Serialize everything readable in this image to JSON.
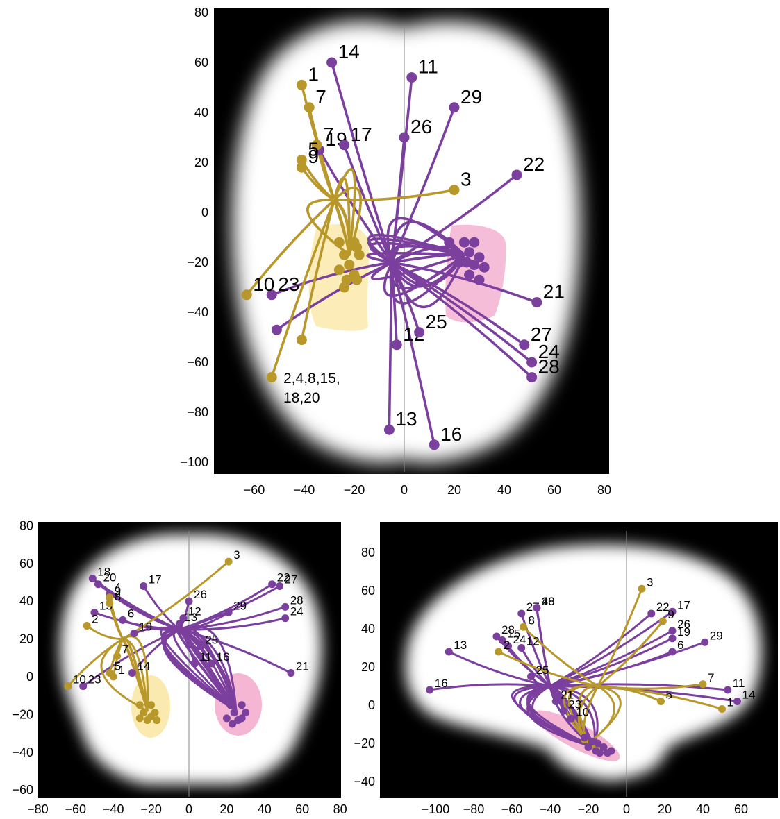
{
  "colors": {
    "olive": "#b8982a",
    "purple": "#7b3f9d",
    "pink": "#f4b6d3",
    "yellow": "#fbeab0"
  },
  "panels": {
    "axial": {
      "x_ticks": [
        "−60",
        "−40",
        "−20",
        "0",
        "20",
        "40",
        "60",
        "80"
      ],
      "y_ticks": [
        "80",
        "60",
        "40",
        "20",
        "0",
        "−20",
        "−40",
        "−60",
        "−80",
        "−100"
      ],
      "group_label_line1": "2,4,8,15,",
      "group_label_line2": "18,20",
      "olive": [
        {
          "label": "1",
          "x": -41,
          "y": 51
        },
        {
          "label": "7",
          "x": -38,
          "y": 42
        },
        {
          "label": "7",
          "x": -35,
          "y": 27
        },
        {
          "label": "5",
          "x": -41,
          "y": 21
        },
        {
          "label": "9",
          "x": -41,
          "y": 18
        },
        {
          "label": "3",
          "x": 20,
          "y": 9
        },
        {
          "label": "10",
          "x": -63,
          "y": -33
        },
        {
          "label": "",
          "x": -41,
          "y": -51
        },
        {
          "label": "",
          "x": -53,
          "y": -66
        }
      ],
      "purple": [
        {
          "label": "14",
          "x": -29,
          "y": 60
        },
        {
          "label": "19",
          "x": -34,
          "y": 25
        },
        {
          "label": "17",
          "x": -24,
          "y": 27
        },
        {
          "label": "11",
          "x": 3,
          "y": 54
        },
        {
          "label": "29",
          "x": 20,
          "y": 42
        },
        {
          "label": "26",
          "x": 0,
          "y": 30
        },
        {
          "label": "22",
          "x": 45,
          "y": 15
        },
        {
          "label": "23",
          "x": -53,
          "y": -33
        },
        {
          "label": "",
          "x": -51,
          "y": -47
        },
        {
          "label": "21",
          "x": 53,
          "y": -36
        },
        {
          "label": "27",
          "x": 48,
          "y": -53
        },
        {
          "label": "24",
          "x": 51,
          "y": -60
        },
        {
          "label": "28",
          "x": 51,
          "y": -66
        },
        {
          "label": "12",
          "x": -3,
          "y": -53
        },
        {
          "label": "25",
          "x": 6,
          "y": -48
        },
        {
          "label": "13",
          "x": -6,
          "y": -87
        },
        {
          "label": "16",
          "x": 12,
          "y": -93
        }
      ]
    },
    "coronal": {
      "x_ticks": [
        "−80",
        "−60",
        "−40",
        "−20",
        "0",
        "20",
        "40",
        "60",
        "80"
      ],
      "y_ticks": [
        "80",
        "60",
        "40",
        "20",
        "0",
        "−20",
        "−40",
        "−60"
      ],
      "olive": [
        {
          "label": "3",
          "x": 21,
          "y": 61
        },
        {
          "label": "9",
          "x": -42,
          "y": 42
        },
        {
          "label": "8",
          "x": -42,
          "y": 39
        },
        {
          "label": "2",
          "x": -54,
          "y": 27
        },
        {
          "label": "7",
          "x": -38,
          "y": 11
        },
        {
          "label": "5",
          "x": -42,
          "y": 2
        },
        {
          "label": "1",
          "x": -40,
          "y": 0
        },
        {
          "label": "10",
          "x": -64,
          "y": -5
        }
      ],
      "purple": [
        {
          "label": "18",
          "x": -51,
          "y": 52
        },
        {
          "label": "20",
          "x": -48,
          "y": 49
        },
        {
          "label": "4",
          "x": -42,
          "y": 44
        },
        {
          "label": "17",
          "x": -24,
          "y": 48
        },
        {
          "label": "15",
          "x": -50,
          "y": 34
        },
        {
          "label": "6",
          "x": -35,
          "y": 30
        },
        {
          "label": "19",
          "x": -29,
          "y": 23
        },
        {
          "label": "14",
          "x": -30,
          "y": 2
        },
        {
          "label": "23",
          "x": -56,
          "y": -5
        },
        {
          "label": "26",
          "x": 0,
          "y": 40
        },
        {
          "label": "12",
          "x": -3,
          "y": 31
        },
        {
          "label": "13",
          "x": -5,
          "y": 28
        },
        {
          "label": "25",
          "x": 6,
          "y": 16
        },
        {
          "label": "11",
          "x": 3,
          "y": 7
        },
        {
          "label": "16",
          "x": 12,
          "y": 7
        },
        {
          "label": "29",
          "x": 21,
          "y": 34
        },
        {
          "label": "22",
          "x": 44,
          "y": 49
        },
        {
          "label": "27",
          "x": 48,
          "y": 48
        },
        {
          "label": "28",
          "x": 51,
          "y": 37
        },
        {
          "label": "24",
          "x": 51,
          "y": 31
        },
        {
          "label": "21",
          "x": 54,
          "y": 2
        }
      ]
    },
    "sagittal": {
      "x_ticks": [
        "−100",
        "−80",
        "−60",
        "−40",
        "−20",
        "0",
        "20",
        "40",
        "60"
      ],
      "y_ticks": [
        "80",
        "60",
        "40",
        "20",
        "0",
        "−20",
        "−40"
      ],
      "olive": [
        {
          "label": "3",
          "x": 8,
          "y": 61
        },
        {
          "label": "9",
          "x": 19,
          "y": 44
        },
        {
          "label": "8",
          "x": -54,
          "y": 41
        },
        {
          "label": "2",
          "x": -67,
          "y": 28
        },
        {
          "label": "7",
          "x": 40,
          "y": 11
        },
        {
          "label": "5",
          "x": 18,
          "y": 2
        },
        {
          "label": "1",
          "x": 50,
          "y": -2
        }
      ],
      "purple": [
        {
          "label": "27",
          "x": -55,
          "y": 48
        },
        {
          "label": "20",
          "x": -47,
          "y": 51
        },
        {
          "label": "4",
          "x": -47,
          "y": 51
        },
        {
          "label": "18",
          "x": -47,
          "y": 51
        },
        {
          "label": "22",
          "x": 13,
          "y": 48
        },
        {
          "label": "17",
          "x": 24,
          "y": 49
        },
        {
          "label": "28",
          "x": -68,
          "y": 36
        },
        {
          "label": "15",
          "x": -65,
          "y": 34
        },
        {
          "label": "24",
          "x": -62,
          "y": 31
        },
        {
          "label": "26",
          "x": 24,
          "y": 39
        },
        {
          "label": "19",
          "x": 24,
          "y": 35
        },
        {
          "label": "29",
          "x": 41,
          "y": 33
        },
        {
          "label": "6",
          "x": 24,
          "y": 28
        },
        {
          "label": "13",
          "x": -93,
          "y": 28
        },
        {
          "label": "12",
          "x": -55,
          "y": 30
        },
        {
          "label": "25",
          "x": -50,
          "y": 15
        },
        {
          "label": "16",
          "x": -103,
          "y": 8
        },
        {
          "label": "21",
          "x": -37,
          "y": 2
        },
        {
          "label": "23",
          "x": -33,
          "y": -3
        },
        {
          "label": "10",
          "x": -29,
          "y": -7
        },
        {
          "label": "11",
          "x": 53,
          "y": 8
        },
        {
          "label": "14",
          "x": 58,
          "y": 2
        }
      ]
    }
  }
}
